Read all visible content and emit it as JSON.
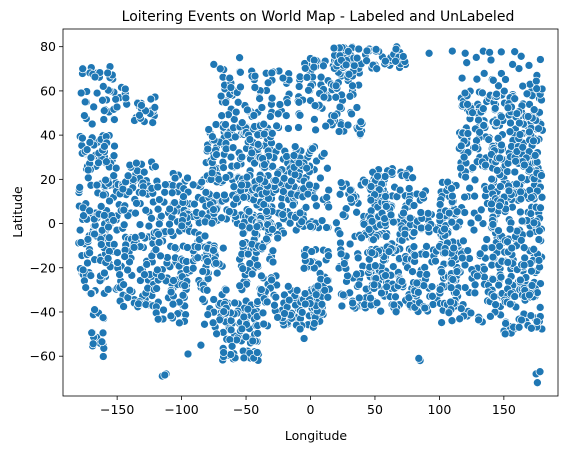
{
  "chart_data": {
    "type": "scatter",
    "title": "Loitering Events on World Map - Labeled and UnLabeled",
    "xlabel": "Longitude",
    "ylabel": "Latitude",
    "xlim": [
      -192,
      192
    ],
    "ylim": [
      -78,
      88
    ],
    "xticks": [
      -150,
      -100,
      -50,
      0,
      50,
      100,
      150
    ],
    "yticks": [
      -60,
      -40,
      -20,
      0,
      20,
      40,
      60,
      80
    ],
    "grid": false,
    "legend": "none",
    "marker_color": "#1f77b4",
    "marker_edge": "#ffffff",
    "regions": [
      {
        "lon": [
          -180,
          -150
        ],
        "lat": [
          -32,
          40
        ],
        "n": 170
      },
      {
        "lon": [
          -150,
          -120
        ],
        "lat": [
          -38,
          28
        ],
        "n": 130
      },
      {
        "lon": [
          -120,
          -95
        ],
        "lat": [
          -45,
          25
        ],
        "n": 110
      },
      {
        "lon": [
          -100,
          -78
        ],
        "lat": [
          -30,
          22
        ],
        "n": 80
      },
      {
        "lon": [
          -178,
          -140
        ],
        "lat": [
          45,
          72
        ],
        "n": 45
      },
      {
        "lon": [
          -140,
          -120
        ],
        "lat": [
          45,
          58
        ],
        "n": 20
      },
      {
        "lon": [
          -170,
          -160
        ],
        "lat": [
          -62,
          -38
        ],
        "n": 18
      },
      {
        "lon": [
          -82,
          -30
        ],
        "lat": [
          0,
          45
        ],
        "n": 230
      },
      {
        "lon": [
          -70,
          -15
        ],
        "lat": [
          40,
          70
        ],
        "n": 90
      },
      {
        "lon": [
          -40,
          -5
        ],
        "lat": [
          -5,
          35
        ],
        "n": 110
      },
      {
        "lon": [
          -55,
          -25
        ],
        "lat": [
          -30,
          0
        ],
        "n": 80
      },
      {
        "lon": [
          -70,
          -40
        ],
        "lat": [
          -62,
          -35
        ],
        "n": 90
      },
      {
        "lon": [
          -85,
          -65
        ],
        "lat": [
          -50,
          -10
        ],
        "n": 45
      },
      {
        "lon": [
          -40,
          10
        ],
        "lat": [
          -48,
          -28
        ],
        "n": 90
      },
      {
        "lon": [
          -10,
          40
        ],
        "lat": [
          40,
          75
        ],
        "n": 110
      },
      {
        "lon": [
          -18,
          15
        ],
        "lat": [
          -2,
          35
        ],
        "n": 70
      },
      {
        "lon": [
          -5,
          15
        ],
        "lat": [
          -40,
          -10
        ],
        "n": 40
      },
      {
        "lon": [
          15,
          75
        ],
        "lat": [
          70,
          80
        ],
        "n": 70
      },
      {
        "lon": [
          20,
          60
        ],
        "lat": [
          -40,
          20
        ],
        "n": 120
      },
      {
        "lon": [
          45,
          80
        ],
        "lat": [
          -40,
          25
        ],
        "n": 200
      },
      {
        "lon": [
          80,
          115
        ],
        "lat": [
          -40,
          15
        ],
        "n": 140
      },
      {
        "lon": [
          100,
          150
        ],
        "lat": [
          -45,
          25
        ],
        "n": 150
      },
      {
        "lon": [
          115,
          180
        ],
        "lat": [
          25,
          60
        ],
        "n": 200
      },
      {
        "lon": [
          140,
          180
        ],
        "lat": [
          -35,
          35
        ],
        "n": 230
      },
      {
        "lon": [
          150,
          180
        ],
        "lat": [
          -50,
          -30
        ],
        "n": 35
      },
      {
        "lon": [
          110,
          180
        ],
        "lat": [
          60,
          78
        ],
        "n": 25
      }
    ],
    "outliers": [
      [
        -115,
        -69
      ],
      [
        -112,
        -68
      ],
      [
        -113,
        -68.5
      ],
      [
        -95,
        -59
      ],
      [
        -85,
        -55
      ],
      [
        -5,
        -52
      ],
      [
        85,
        -62
      ],
      [
        84,
        -61
      ],
      [
        175,
        -68
      ],
      [
        176,
        -72
      ],
      [
        178,
        -67
      ],
      [
        92,
        77
      ],
      [
        110,
        78
      ],
      [
        120,
        77
      ],
      [
        140,
        74
      ],
      [
        -75,
        72
      ],
      [
        -70,
        70
      ],
      [
        -48,
        40
      ],
      [
        -47,
        38
      ],
      [
        -55,
        75
      ]
    ]
  }
}
